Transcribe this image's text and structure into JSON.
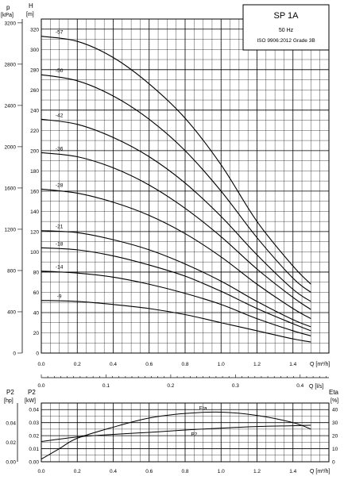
{
  "colors": {
    "background": "#ffffff",
    "grid": "#000000",
    "curve": "#000000"
  },
  "info_box": {
    "title": "SP 1A",
    "frequency": "50 Hz",
    "standard": "ISO 9906:2012 Grade 3B"
  },
  "head_chart": {
    "left_axis_symbol": "p",
    "left_axis_unit": "[kPa]",
    "right_axis_symbol": "H",
    "right_axis_unit": "[m]",
    "x_axis_label": "Q [m³/h]",
    "x_ticks": [
      "0.0",
      "0.2",
      "0.4",
      "0.6",
      "0.8",
      "1.0",
      "1.2",
      "1.4"
    ],
    "h_ticks": [
      "0",
      "20",
      "40",
      "60",
      "80",
      "100",
      "120",
      "140",
      "160",
      "180",
      "200",
      "220",
      "240",
      "260",
      "280",
      "300",
      "320"
    ],
    "p_ticks": [
      "0",
      "400",
      "800",
      "1200",
      "1600",
      "2000",
      "2400",
      "2800",
      "3200"
    ]
  },
  "flow_axis": {
    "label": "Q [l/s]",
    "ticks": [
      "0.0",
      "0.1",
      "0.2",
      "0.3",
      "0.4"
    ]
  },
  "power_chart": {
    "left_axis_symbol": "P2",
    "left_axis_unit": "[hp]",
    "left2_axis_symbol": "P2",
    "left2_axis_unit": "[kW]",
    "right_axis_symbol": "Eta",
    "right_axis_unit": "[%]",
    "x_axis_label": "Q [m³/h]",
    "x_ticks": [
      "0.0",
      "0.2",
      "0.4",
      "0.6",
      "0.8",
      "1.0",
      "1.2",
      "1.4"
    ],
    "kw_ticks": [
      "0.00",
      "0.01",
      "0.02",
      "0.03",
      "0.04"
    ],
    "hp_ticks": [
      "0.00",
      "0.02",
      "0.04"
    ],
    "eta_ticks": [
      "0",
      "10",
      "20",
      "30",
      "40"
    ]
  },
  "chart_data": [
    {
      "type": "line",
      "title": "SP 1A",
      "xlabel": "Q [m³/h]",
      "ylabel": "H [m]",
      "xlim": [
        0,
        1.6
      ],
      "ylim": [
        0,
        330
      ],
      "grid": true,
      "series": [
        {
          "name": "-57",
          "points": [
            [
              0,
              313
            ],
            [
              0.2,
              308
            ],
            [
              0.4,
              292
            ],
            [
              0.6,
              266
            ],
            [
              0.8,
              232
            ],
            [
              1.0,
              186
            ],
            [
              1.2,
              130
            ],
            [
              1.4,
              86
            ],
            [
              1.5,
              68
            ]
          ]
        },
        {
          "name": "-50",
          "points": [
            [
              0,
              275
            ],
            [
              0.2,
              269
            ],
            [
              0.4,
              254
            ],
            [
              0.6,
              231
            ],
            [
              0.8,
              200
            ],
            [
              1.0,
              160
            ],
            [
              1.2,
              114
            ],
            [
              1.4,
              74
            ],
            [
              1.5,
              60
            ]
          ]
        },
        {
          "name": "-42",
          "points": [
            [
              0,
              231
            ],
            [
              0.2,
              226
            ],
            [
              0.4,
              213
            ],
            [
              0.6,
              194
            ],
            [
              0.8,
              168
            ],
            [
              1.0,
              135
            ],
            [
              1.2,
              97
            ],
            [
              1.4,
              63
            ],
            [
              1.5,
              51
            ]
          ]
        },
        {
          "name": "-36",
          "points": [
            [
              0,
              198
            ],
            [
              0.2,
              194
            ],
            [
              0.4,
              183
            ],
            [
              0.6,
              166
            ],
            [
              0.8,
              143
            ],
            [
              1.0,
              115
            ],
            [
              1.2,
              83
            ],
            [
              1.4,
              55
            ],
            [
              1.5,
              43
            ]
          ]
        },
        {
          "name": "-28",
          "points": [
            [
              0,
              162
            ],
            [
              0.2,
              158
            ],
            [
              0.4,
              149
            ],
            [
              0.6,
              136
            ],
            [
              0.8,
              118
            ],
            [
              1.0,
              95
            ],
            [
              1.2,
              68
            ],
            [
              1.4,
              44
            ],
            [
              1.5,
              34
            ]
          ]
        },
        {
          "name": "-21",
          "points": [
            [
              0,
              121
            ],
            [
              0.2,
              119
            ],
            [
              0.4,
              112
            ],
            [
              0.6,
              102
            ],
            [
              0.8,
              88
            ],
            [
              1.0,
              71
            ],
            [
              1.2,
              51
            ],
            [
              1.4,
              33
            ],
            [
              1.5,
              26
            ]
          ]
        },
        {
          "name": "-18",
          "points": [
            [
              0,
              104
            ],
            [
              0.2,
              102
            ],
            [
              0.4,
              96
            ],
            [
              0.6,
              87
            ],
            [
              0.8,
              76
            ],
            [
              1.0,
              61
            ],
            [
              1.2,
              44
            ],
            [
              1.4,
              29
            ],
            [
              1.5,
              22
            ]
          ]
        },
        {
          "name": "-14",
          "points": [
            [
              0,
              81
            ],
            [
              0.2,
              79
            ],
            [
              0.4,
              75
            ],
            [
              0.6,
              68
            ],
            [
              0.8,
              59
            ],
            [
              1.0,
              48
            ],
            [
              1.2,
              34
            ],
            [
              1.4,
              22
            ],
            [
              1.5,
              17
            ]
          ]
        },
        {
          "name": "-9",
          "points": [
            [
              0,
              52
            ],
            [
              0.2,
              51
            ],
            [
              0.4,
              48
            ],
            [
              0.6,
              44
            ],
            [
              0.8,
              38
            ],
            [
              1.0,
              30
            ],
            [
              1.2,
              22
            ],
            [
              1.4,
              14
            ],
            [
              1.5,
              11
            ]
          ]
        }
      ]
    },
    {
      "type": "line",
      "xlabel": "Q [m³/h]",
      "ylabel": "P2 [kW] / Eta [%]",
      "xlim": [
        0,
        1.6
      ],
      "ylim_kw": [
        0,
        0.045
      ],
      "ylim_eta": [
        0,
        45
      ],
      "grid": true,
      "series": [
        {
          "name": "Eta",
          "axis": "eta",
          "points": [
            [
              0,
              2
            ],
            [
              0.1,
              10
            ],
            [
              0.2,
              18
            ],
            [
              0.4,
              26.5
            ],
            [
              0.6,
              33.5
            ],
            [
              0.8,
              37
            ],
            [
              1.0,
              38
            ],
            [
              1.2,
              35.5
            ],
            [
              1.4,
              30
            ],
            [
              1.5,
              25
            ]
          ]
        },
        {
          "name": "P2",
          "axis": "kw",
          "points": [
            [
              0,
              0.0155
            ],
            [
              0.2,
              0.019
            ],
            [
              0.4,
              0.021
            ],
            [
              0.6,
              0.0225
            ],
            [
              0.8,
              0.0243
            ],
            [
              1.0,
              0.0258
            ],
            [
              1.2,
              0.027
            ],
            [
              1.4,
              0.0276
            ],
            [
              1.5,
              0.028
            ]
          ]
        }
      ]
    }
  ]
}
